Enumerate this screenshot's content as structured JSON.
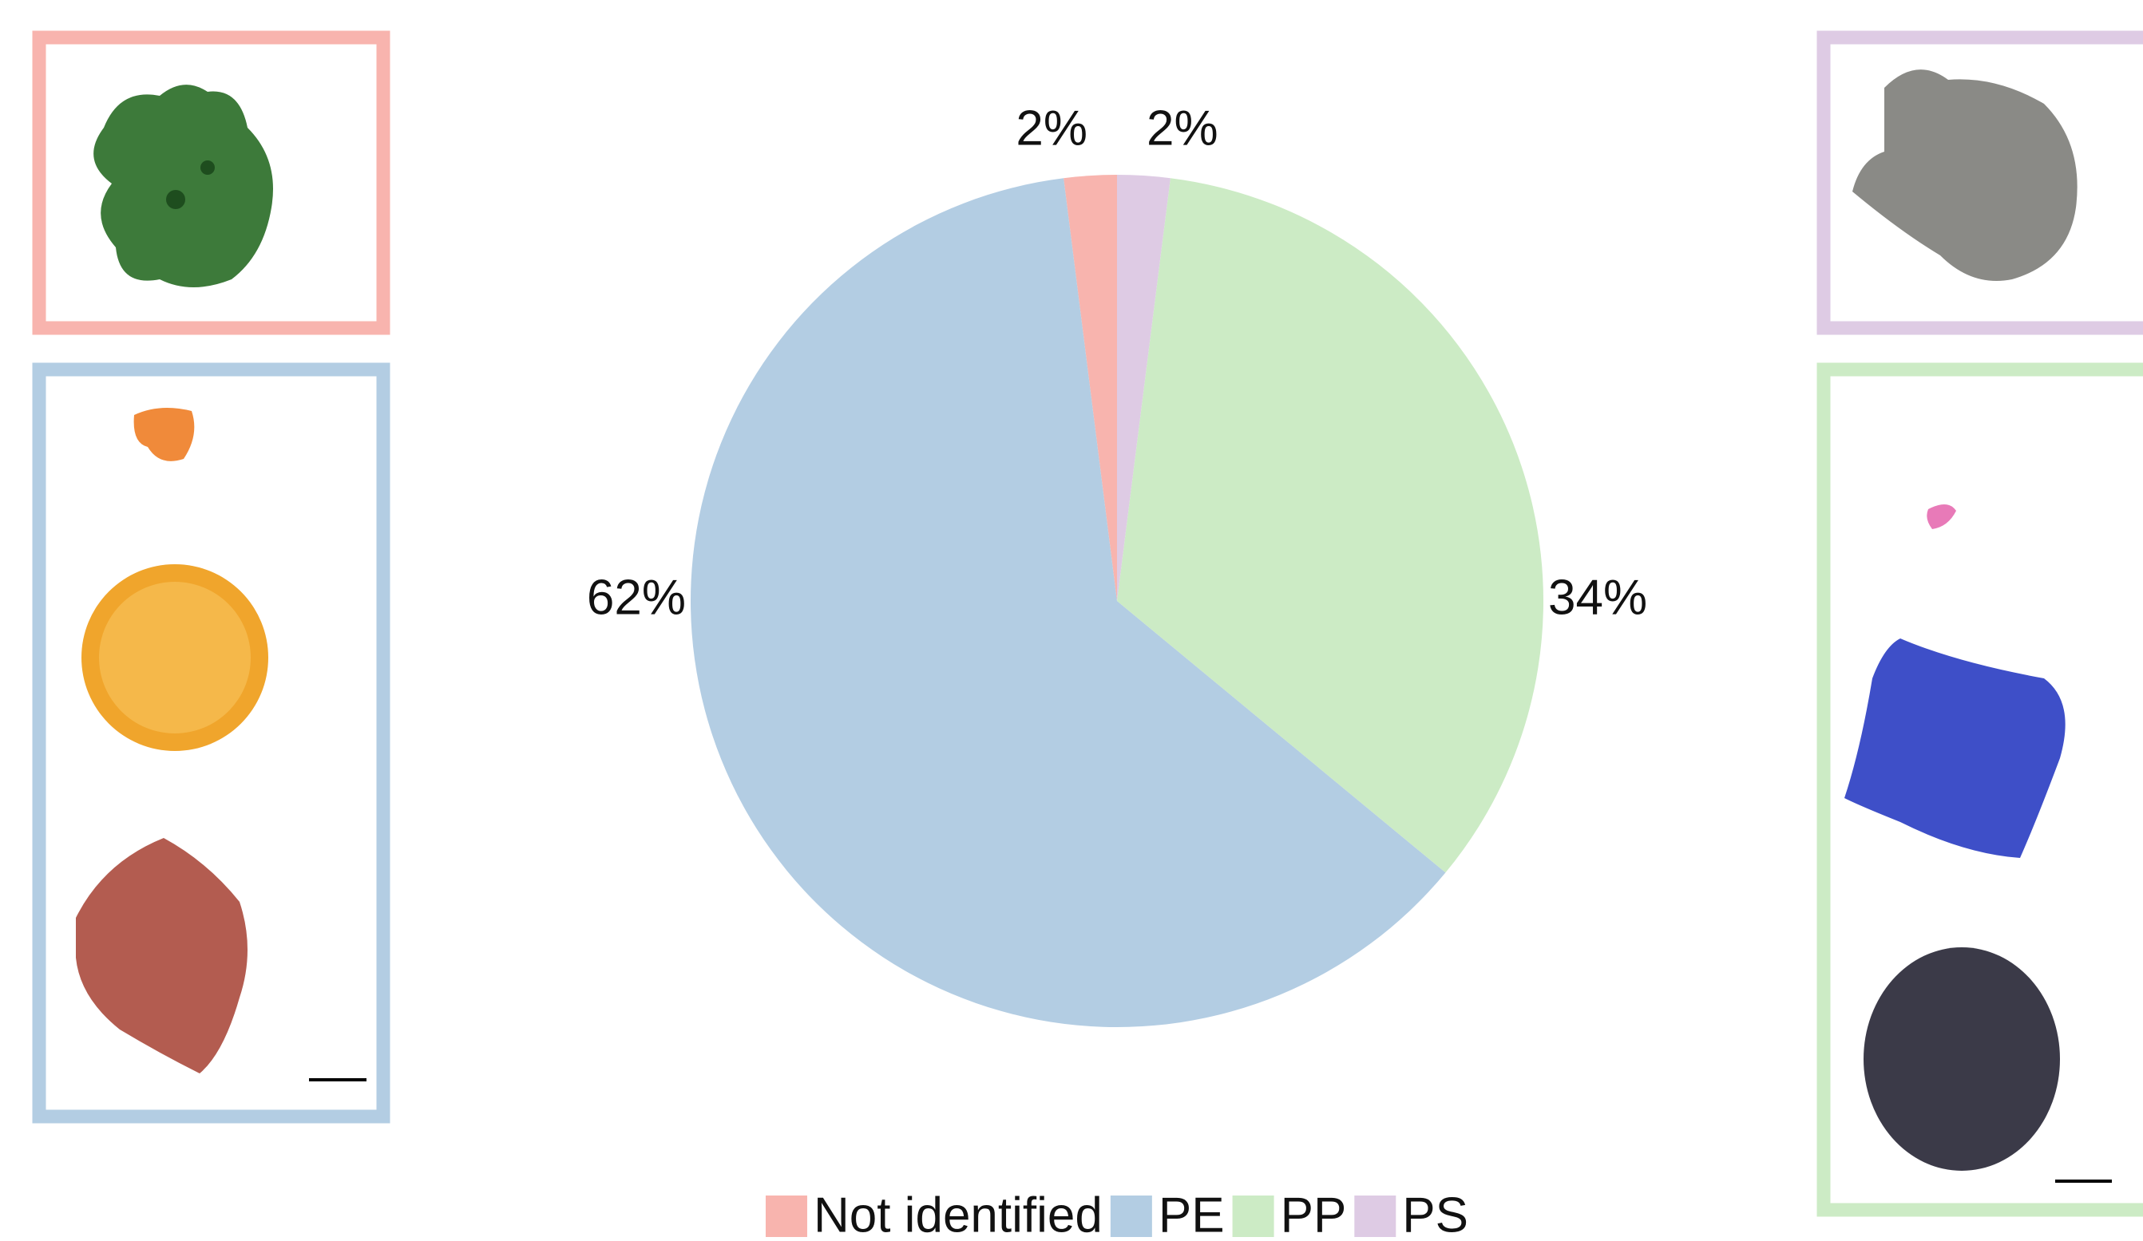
{
  "chart_data": {
    "type": "pie",
    "categories": [
      "Not identified",
      "PE",
      "PP",
      "PS"
    ],
    "values": [
      2,
      62,
      34,
      2
    ],
    "value_labels": [
      "2%",
      "62%",
      "34%",
      "2%"
    ],
    "colors": [
      "#f8b4ae",
      "#b3cde3",
      "#ccebc5",
      "#decbe4"
    ],
    "legend": "bottom"
  }
}
